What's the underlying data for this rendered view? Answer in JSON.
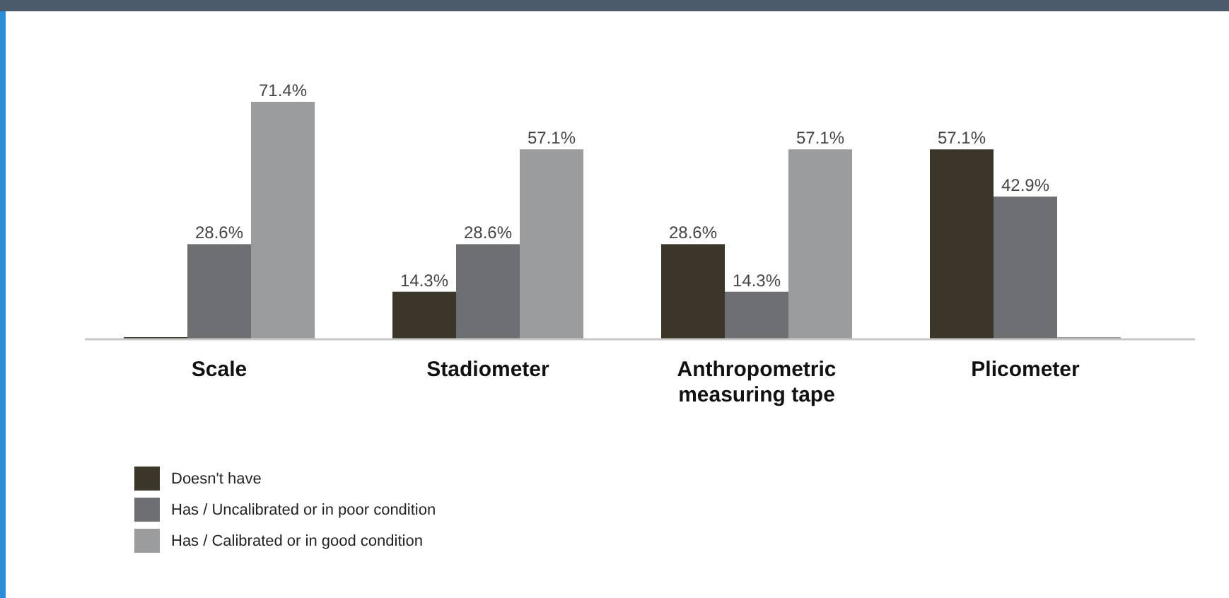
{
  "chart_data": {
    "type": "bar",
    "categories": [
      "Scale",
      "Stadiometer",
      "Anthropometric measuring tape",
      "Plicometer"
    ],
    "series": [
      {
        "name": "Doesn't have",
        "color": "#3b3629",
        "values": [
          0,
          14.3,
          28.6,
          57.1
        ],
        "value_labels": [
          null,
          "14.3%",
          "28.6%",
          "57.1%"
        ]
      },
      {
        "name": "Has / Uncalibrated or in poor condition",
        "color": "#6e6f73",
        "values": [
          28.6,
          28.6,
          14.3,
          42.9
        ],
        "value_labels": [
          "28.6%",
          "28.6%",
          "14.3%",
          "42.9%"
        ]
      },
      {
        "name": "Has / Calibrated or in good condition",
        "color": "#9b9c9e",
        "values": [
          71.4,
          57.1,
          57.1,
          0
        ],
        "value_labels": [
          "71.4%",
          "57.1%",
          "57.1%",
          null
        ]
      }
    ],
    "legend": "bottom left"
  }
}
